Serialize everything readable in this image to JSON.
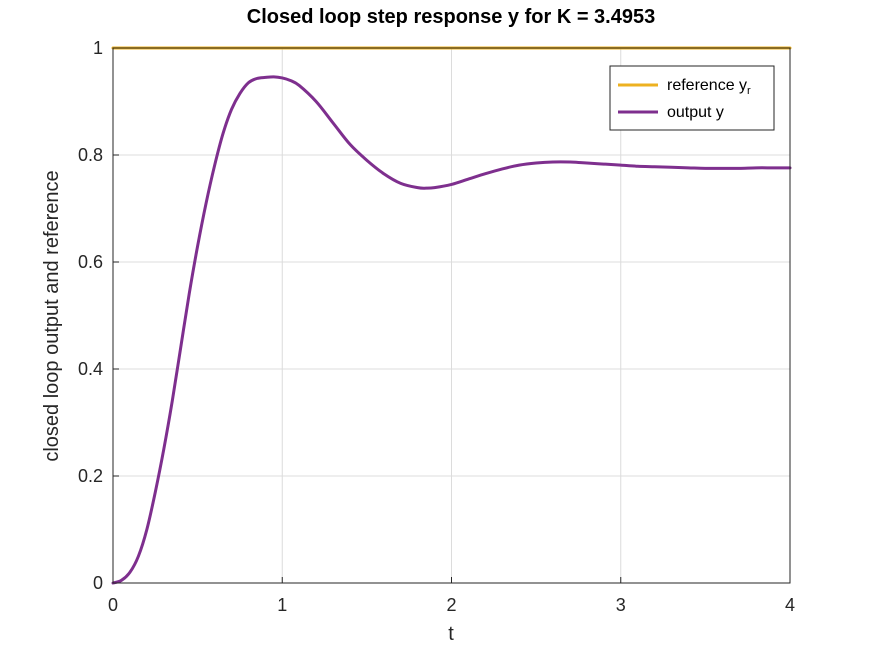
{
  "chart_data": {
    "type": "line",
    "title": "Closed loop step response y for K = 3.4953",
    "xlabel": "t",
    "ylabel": "closed loop output and reference",
    "xlim": [
      0,
      4
    ],
    "ylim": [
      0,
      1
    ],
    "grid": true,
    "legend_position": "top-right",
    "xticks": [
      "0",
      "1",
      "2",
      "3",
      "4"
    ],
    "yticks": [
      "0",
      "0.2",
      "0.4",
      "0.6",
      "0.8",
      "1"
    ],
    "legend": {
      "reference_main": "reference y",
      "reference_sub": "r",
      "output": "output y"
    },
    "series": [
      {
        "key": "reference",
        "color": "#EDB120",
        "x": [
          0,
          4
        ],
        "y": [
          1,
          1
        ]
      },
      {
        "key": "output",
        "color": "#7E2F8E",
        "x": [
          0,
          0.05,
          0.1,
          0.15,
          0.2,
          0.25,
          0.3,
          0.35,
          0.4,
          0.45,
          0.5,
          0.55,
          0.6,
          0.65,
          0.7,
          0.75,
          0.8,
          0.85,
          0.9,
          0.95,
          1.0,
          1.05,
          1.1,
          1.2,
          1.3,
          1.4,
          1.5,
          1.6,
          1.7,
          1.8,
          1.85,
          1.9,
          2.0,
          2.1,
          2.2,
          2.3,
          2.4,
          2.5,
          2.6,
          2.7,
          2.75,
          2.8,
          2.9,
          3.0,
          3.1,
          3.2,
          3.3,
          3.4,
          3.5,
          3.6,
          3.7,
          3.8,
          3.9,
          4.0
        ],
        "y": [
          0,
          0.005,
          0.02,
          0.05,
          0.1,
          0.17,
          0.25,
          0.34,
          0.44,
          0.54,
          0.63,
          0.71,
          0.78,
          0.84,
          0.885,
          0.915,
          0.935,
          0.943,
          0.945,
          0.946,
          0.944,
          0.939,
          0.93,
          0.9,
          0.86,
          0.82,
          0.79,
          0.765,
          0.747,
          0.739,
          0.738,
          0.739,
          0.745,
          0.755,
          0.765,
          0.774,
          0.781,
          0.785,
          0.787,
          0.787,
          0.786,
          0.785,
          0.783,
          0.781,
          0.779,
          0.778,
          0.777,
          0.776,
          0.775,
          0.775,
          0.775,
          0.776,
          0.776,
          0.776
        ]
      }
    ]
  }
}
